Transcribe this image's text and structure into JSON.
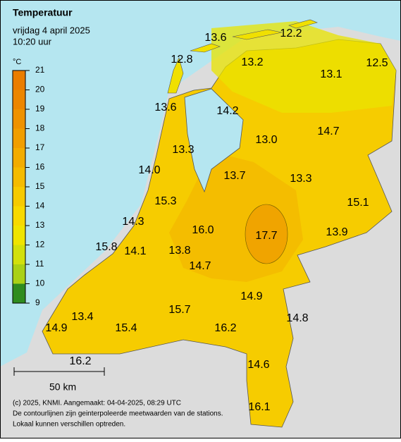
{
  "header": {
    "title": "Temperatuur",
    "date": "vrijdag 4 april 2025",
    "time": "10:20 uur"
  },
  "legend": {
    "unit": "°C",
    "ticks": [
      21,
      20,
      19,
      18,
      17,
      16,
      15,
      14,
      13,
      12,
      11,
      10,
      9
    ],
    "colors": [
      "#ea7d00",
      "#ec8600",
      "#ee9200",
      "#f09e00",
      "#f2ac00",
      "#f4bb00",
      "#f6ca00",
      "#f7d900",
      "#efe400",
      "#d2e00c",
      "#aad116",
      "#2f8c1f"
    ]
  },
  "stations": [
    "13.6",
    "12.2",
    "12.8",
    "13.2",
    "13.1",
    "12.5",
    "13.6",
    "14.2",
    "14.7",
    "13.0",
    "13.3",
    "14.0",
    "13.7",
    "13.3",
    "15.3",
    "15.1",
    "14.3",
    "16.0",
    "17.7",
    "13.9",
    "15.8",
    "14.1",
    "13.8",
    "14.7",
    "14.9",
    "15.7",
    "13.4",
    "14.8",
    "14.9",
    "15.4",
    "16.2",
    "16.2",
    "14.6",
    "16.1"
  ],
  "scale_bar": "50 km",
  "footer": [
    "(c) 2025, KNMI. Aangemaakt: 04-04-2025, 08:29 UTC",
    "De contourlijnen zijn geinterpoleerde meetwaarden van de stations.",
    "Lokaal kunnen verschillen optreden."
  ]
}
